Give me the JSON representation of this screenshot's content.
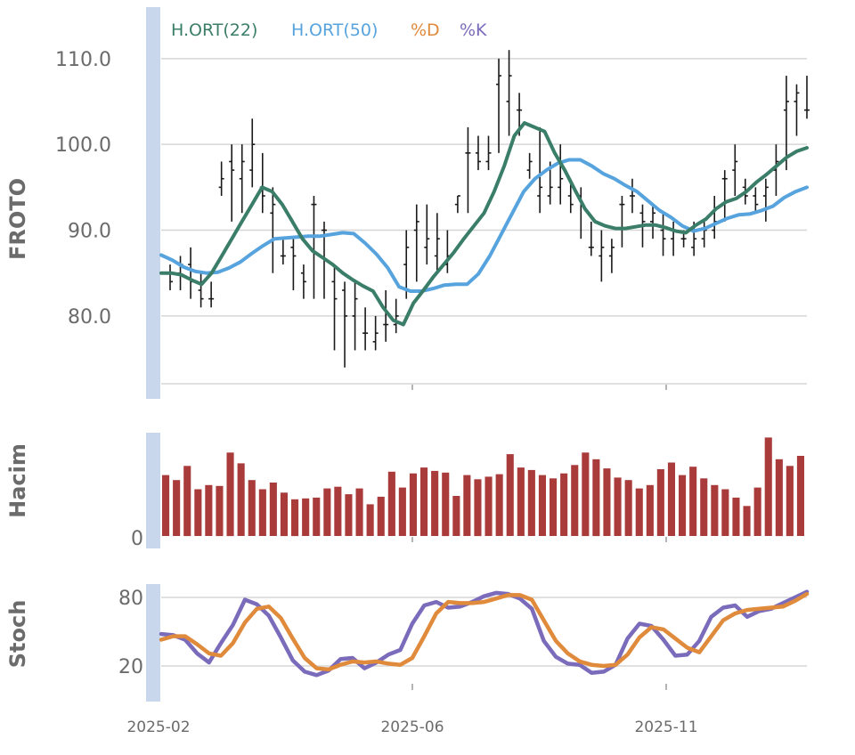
{
  "chart_data": [
    {
      "type": "ohlc",
      "panel": "price",
      "ylabel": "FROTO",
      "ylim": [
        72,
        116
      ],
      "yticks": [
        80,
        90,
        100,
        110
      ],
      "ytick_labels": [
        "80.0",
        "90.0",
        "100.0",
        "110.0"
      ],
      "grid": true,
      "legend": {
        "placement": "top-left",
        "entries": [
          {
            "label": "H.ORT(22)",
            "color": "#3a7d68"
          },
          {
            "label": "H.ORT(50)",
            "color": "#56a3de"
          },
          {
            "label": "%D",
            "color": "#e08a3c"
          },
          {
            "label": "%K",
            "color": "#7b6bbb"
          }
        ]
      },
      "bars": [
        {
          "o": 85,
          "h": 86,
          "l": 83,
          "c": 84
        },
        {
          "o": 85,
          "h": 87,
          "l": 83,
          "c": 86
        },
        {
          "o": 86,
          "h": 88,
          "l": 82,
          "c": 84
        },
        {
          "o": 83,
          "h": 85,
          "l": 81,
          "c": 82
        },
        {
          "o": 82,
          "h": 84,
          "l": 81,
          "c": 82
        },
        {
          "o": 95,
          "h": 98,
          "l": 94,
          "c": 96
        },
        {
          "o": 98,
          "h": 100,
          "l": 91,
          "c": 97
        },
        {
          "o": 96,
          "h": 100,
          "l": 92,
          "c": 98
        },
        {
          "o": 97,
          "h": 103,
          "l": 95,
          "c": 100
        },
        {
          "o": 95,
          "h": 99,
          "l": 92,
          "c": 94
        },
        {
          "o": 92,
          "h": 95,
          "l": 85,
          "c": 93
        },
        {
          "o": 87,
          "h": 89,
          "l": 86,
          "c": 87
        },
        {
          "o": 88,
          "h": 89,
          "l": 83,
          "c": 87
        },
        {
          "o": 85,
          "h": 86,
          "l": 82,
          "c": 84
        },
        {
          "o": 93,
          "h": 94,
          "l": 82,
          "c": 93
        },
        {
          "o": 90,
          "h": 91,
          "l": 82,
          "c": 90
        },
        {
          "o": 84,
          "h": 86,
          "l": 76,
          "c": 82
        },
        {
          "o": 83,
          "h": 84,
          "l": 74,
          "c": 80
        },
        {
          "o": 80,
          "h": 84,
          "l": 76,
          "c": 82
        },
        {
          "o": 78,
          "h": 81,
          "l": 76,
          "c": 78
        },
        {
          "o": 77,
          "h": 80,
          "l": 76,
          "c": 78
        },
        {
          "o": 79,
          "h": 83,
          "l": 77,
          "c": 79
        },
        {
          "o": 79,
          "h": 82,
          "l": 78,
          "c": 80
        },
        {
          "o": 86,
          "h": 90,
          "l": 82,
          "c": 88
        },
        {
          "o": 90,
          "h": 93,
          "l": 84,
          "c": 91
        },
        {
          "o": 88,
          "h": 93,
          "l": 86,
          "c": 89
        },
        {
          "o": 87,
          "h": 92,
          "l": 85,
          "c": 89
        },
        {
          "o": 86,
          "h": 90,
          "l": 85,
          "c": 87
        },
        {
          "o": 93,
          "h": 94,
          "l": 92,
          "c": 94
        },
        {
          "o": 99,
          "h": 102,
          "l": 92,
          "c": 99
        },
        {
          "o": 99,
          "h": 101,
          "l": 97,
          "c": 98
        },
        {
          "o": 98,
          "h": 101,
          "l": 97,
          "c": 99
        },
        {
          "o": 107,
          "h": 110,
          "l": 99,
          "c": 108
        },
        {
          "o": 105,
          "h": 111,
          "l": 101,
          "c": 108
        },
        {
          "o": 104,
          "h": 106,
          "l": 101,
          "c": 104
        },
        {
          "o": 97,
          "h": 99,
          "l": 96,
          "c": 98
        },
        {
          "o": 94,
          "h": 102,
          "l": 92,
          "c": 95
        },
        {
          "o": 94,
          "h": 98,
          "l": 93,
          "c": 95
        },
        {
          "o": 95,
          "h": 100,
          "l": 93,
          "c": 96
        },
        {
          "o": 94,
          "h": 96,
          "l": 92,
          "c": 93
        },
        {
          "o": 94,
          "h": 95,
          "l": 89,
          "c": 93
        },
        {
          "o": 88,
          "h": 91,
          "l": 87,
          "c": 88
        },
        {
          "o": 87,
          "h": 90,
          "l": 84,
          "c": 88
        },
        {
          "o": 87,
          "h": 89,
          "l": 85,
          "c": 88
        },
        {
          "o": 93,
          "h": 94,
          "l": 88,
          "c": 93
        },
        {
          "o": 94,
          "h": 96,
          "l": 92,
          "c": 94
        },
        {
          "o": 92,
          "h": 93,
          "l": 88,
          "c": 91
        },
        {
          "o": 91,
          "h": 93,
          "l": 89,
          "c": 92
        },
        {
          "o": 90,
          "h": 92,
          "l": 87,
          "c": 89
        },
        {
          "o": 89,
          "h": 91,
          "l": 87,
          "c": 90
        },
        {
          "o": 89,
          "h": 90,
          "l": 88,
          "c": 89
        },
        {
          "o": 88,
          "h": 91,
          "l": 87,
          "c": 89
        },
        {
          "o": 89,
          "h": 91,
          "l": 88,
          "c": 90
        },
        {
          "o": 90,
          "h": 94,
          "l": 89,
          "c": 91
        },
        {
          "o": 96,
          "h": 97,
          "l": 91,
          "c": 96
        },
        {
          "o": 97,
          "h": 100,
          "l": 94,
          "c": 98
        },
        {
          "o": 95,
          "h": 96,
          "l": 93,
          "c": 94
        },
        {
          "o": 94,
          "h": 95,
          "l": 92,
          "c": 93
        },
        {
          "o": 94,
          "h": 96,
          "l": 91,
          "c": 95
        },
        {
          "o": 97,
          "h": 100,
          "l": 94,
          "c": 98
        },
        {
          "o": 104,
          "h": 108,
          "l": 97,
          "c": 105
        },
        {
          "o": 105,
          "h": 107,
          "l": 101,
          "c": 106
        },
        {
          "o": 104,
          "h": 108,
          "l": 103,
          "c": 104
        }
      ],
      "series": [
        {
          "name": "H.ORT(22)",
          "color": "#3a7d68",
          "values": [
            85,
            85,
            84.8,
            84.2,
            83.7,
            85,
            87,
            89,
            91,
            93,
            95,
            94.5,
            93,
            91,
            89,
            87.6,
            86.8,
            86,
            85,
            84.2,
            83.5,
            82.9,
            81,
            79.5,
            79,
            81.5,
            83,
            84.6,
            86,
            87.4,
            89,
            90.5,
            92,
            94.5,
            97.5,
            101,
            102.5,
            102,
            101.5,
            99,
            97,
            94.7,
            92.5,
            91,
            90.5,
            90.2,
            90.2,
            90.4,
            90.6,
            90.6,
            90.3,
            89.9,
            89.7,
            90.6,
            91.3,
            92.5,
            93.3,
            93.7,
            94.5,
            95.6,
            96.5,
            97.5,
            98.5,
            99.2,
            99.6
          ]
        },
        {
          "name": "H.ORT(50)",
          "color": "#56a3de",
          "values": [
            87.1,
            86.5,
            85.7,
            85.2,
            85.0,
            85.1,
            85.6,
            86.3,
            87.3,
            88.2,
            89.0,
            89.1,
            89.2,
            89.3,
            89.3,
            89.5,
            89.7,
            89.6,
            88.5,
            87.2,
            85.6,
            83.4,
            82.9,
            82.9,
            83.2,
            83.6,
            83.7,
            83.7,
            84.9,
            87.0,
            89.5,
            92.0,
            94.5,
            96.0,
            97.0,
            97.8,
            98.2,
            98.2,
            97.5,
            96.6,
            96.0,
            95.2,
            94.5,
            93.4,
            92.3,
            91.5,
            90.5,
            89.9,
            90.2,
            90.8,
            91.4,
            91.8,
            91.9,
            92.3,
            92.8,
            93.8,
            94.5,
            95.0
          ]
        }
      ]
    },
    {
      "type": "bar",
      "panel": "volume",
      "ylabel": "Hacim",
      "ylim": [
        0,
        128
      ],
      "ytick_labels": [
        "0"
      ],
      "color": "#aa3b3b",
      "values": [
        73,
        67,
        84,
        56,
        61,
        60,
        100,
        87,
        67,
        56,
        64,
        52,
        44,
        45,
        46,
        57,
        59,
        50,
        57,
        38,
        47,
        77,
        58,
        75,
        82,
        78,
        76,
        48,
        73,
        68,
        71,
        74,
        98,
        82,
        79,
        73,
        69,
        75,
        85,
        100,
        92,
        81,
        70,
        67,
        57,
        61,
        80,
        88,
        73,
        83,
        69,
        61,
        56,
        46,
        36,
        58,
        118,
        92,
        84,
        96
      ]
    },
    {
      "type": "line",
      "panel": "stochastic",
      "ylabel": "Stoch",
      "ylim": [
        0,
        100
      ],
      "yticks": [
        20,
        80
      ],
      "ytick_labels": [
        "20",
        "80"
      ],
      "grid": true,
      "series": [
        {
          "name": "%K",
          "color": "#7b6bbb",
          "values": [
            48,
            47,
            43,
            31,
            23,
            40,
            56,
            78,
            74,
            64,
            45,
            25,
            15,
            12,
            16,
            26,
            27,
            18,
            23,
            30,
            34,
            57,
            73,
            76,
            71,
            72,
            76,
            81,
            84,
            83,
            79,
            70,
            42,
            28,
            22,
            21,
            14,
            15,
            21,
            44,
            57,
            55,
            43,
            29,
            30,
            42,
            63,
            71,
            73,
            63,
            68,
            70,
            75,
            80,
            85
          ]
        },
        {
          "name": "%D",
          "color": "#e08a3c",
          "values": [
            43,
            46,
            46,
            39,
            31,
            29,
            40,
            58,
            70,
            72,
            62,
            44,
            27,
            18,
            17,
            21,
            24,
            23,
            24,
            22,
            21,
            27,
            46,
            66,
            76,
            75,
            75,
            76,
            79,
            82,
            82,
            78,
            60,
            42,
            31,
            24,
            21,
            20,
            21,
            30,
            45,
            54,
            52,
            44,
            36,
            32,
            46,
            60,
            66,
            69,
            70,
            71,
            72,
            77,
            83
          ]
        }
      ]
    }
  ],
  "xaxis": {
    "tick_labels": [
      "2025-02",
      "2025-06",
      "2025-11"
    ]
  }
}
